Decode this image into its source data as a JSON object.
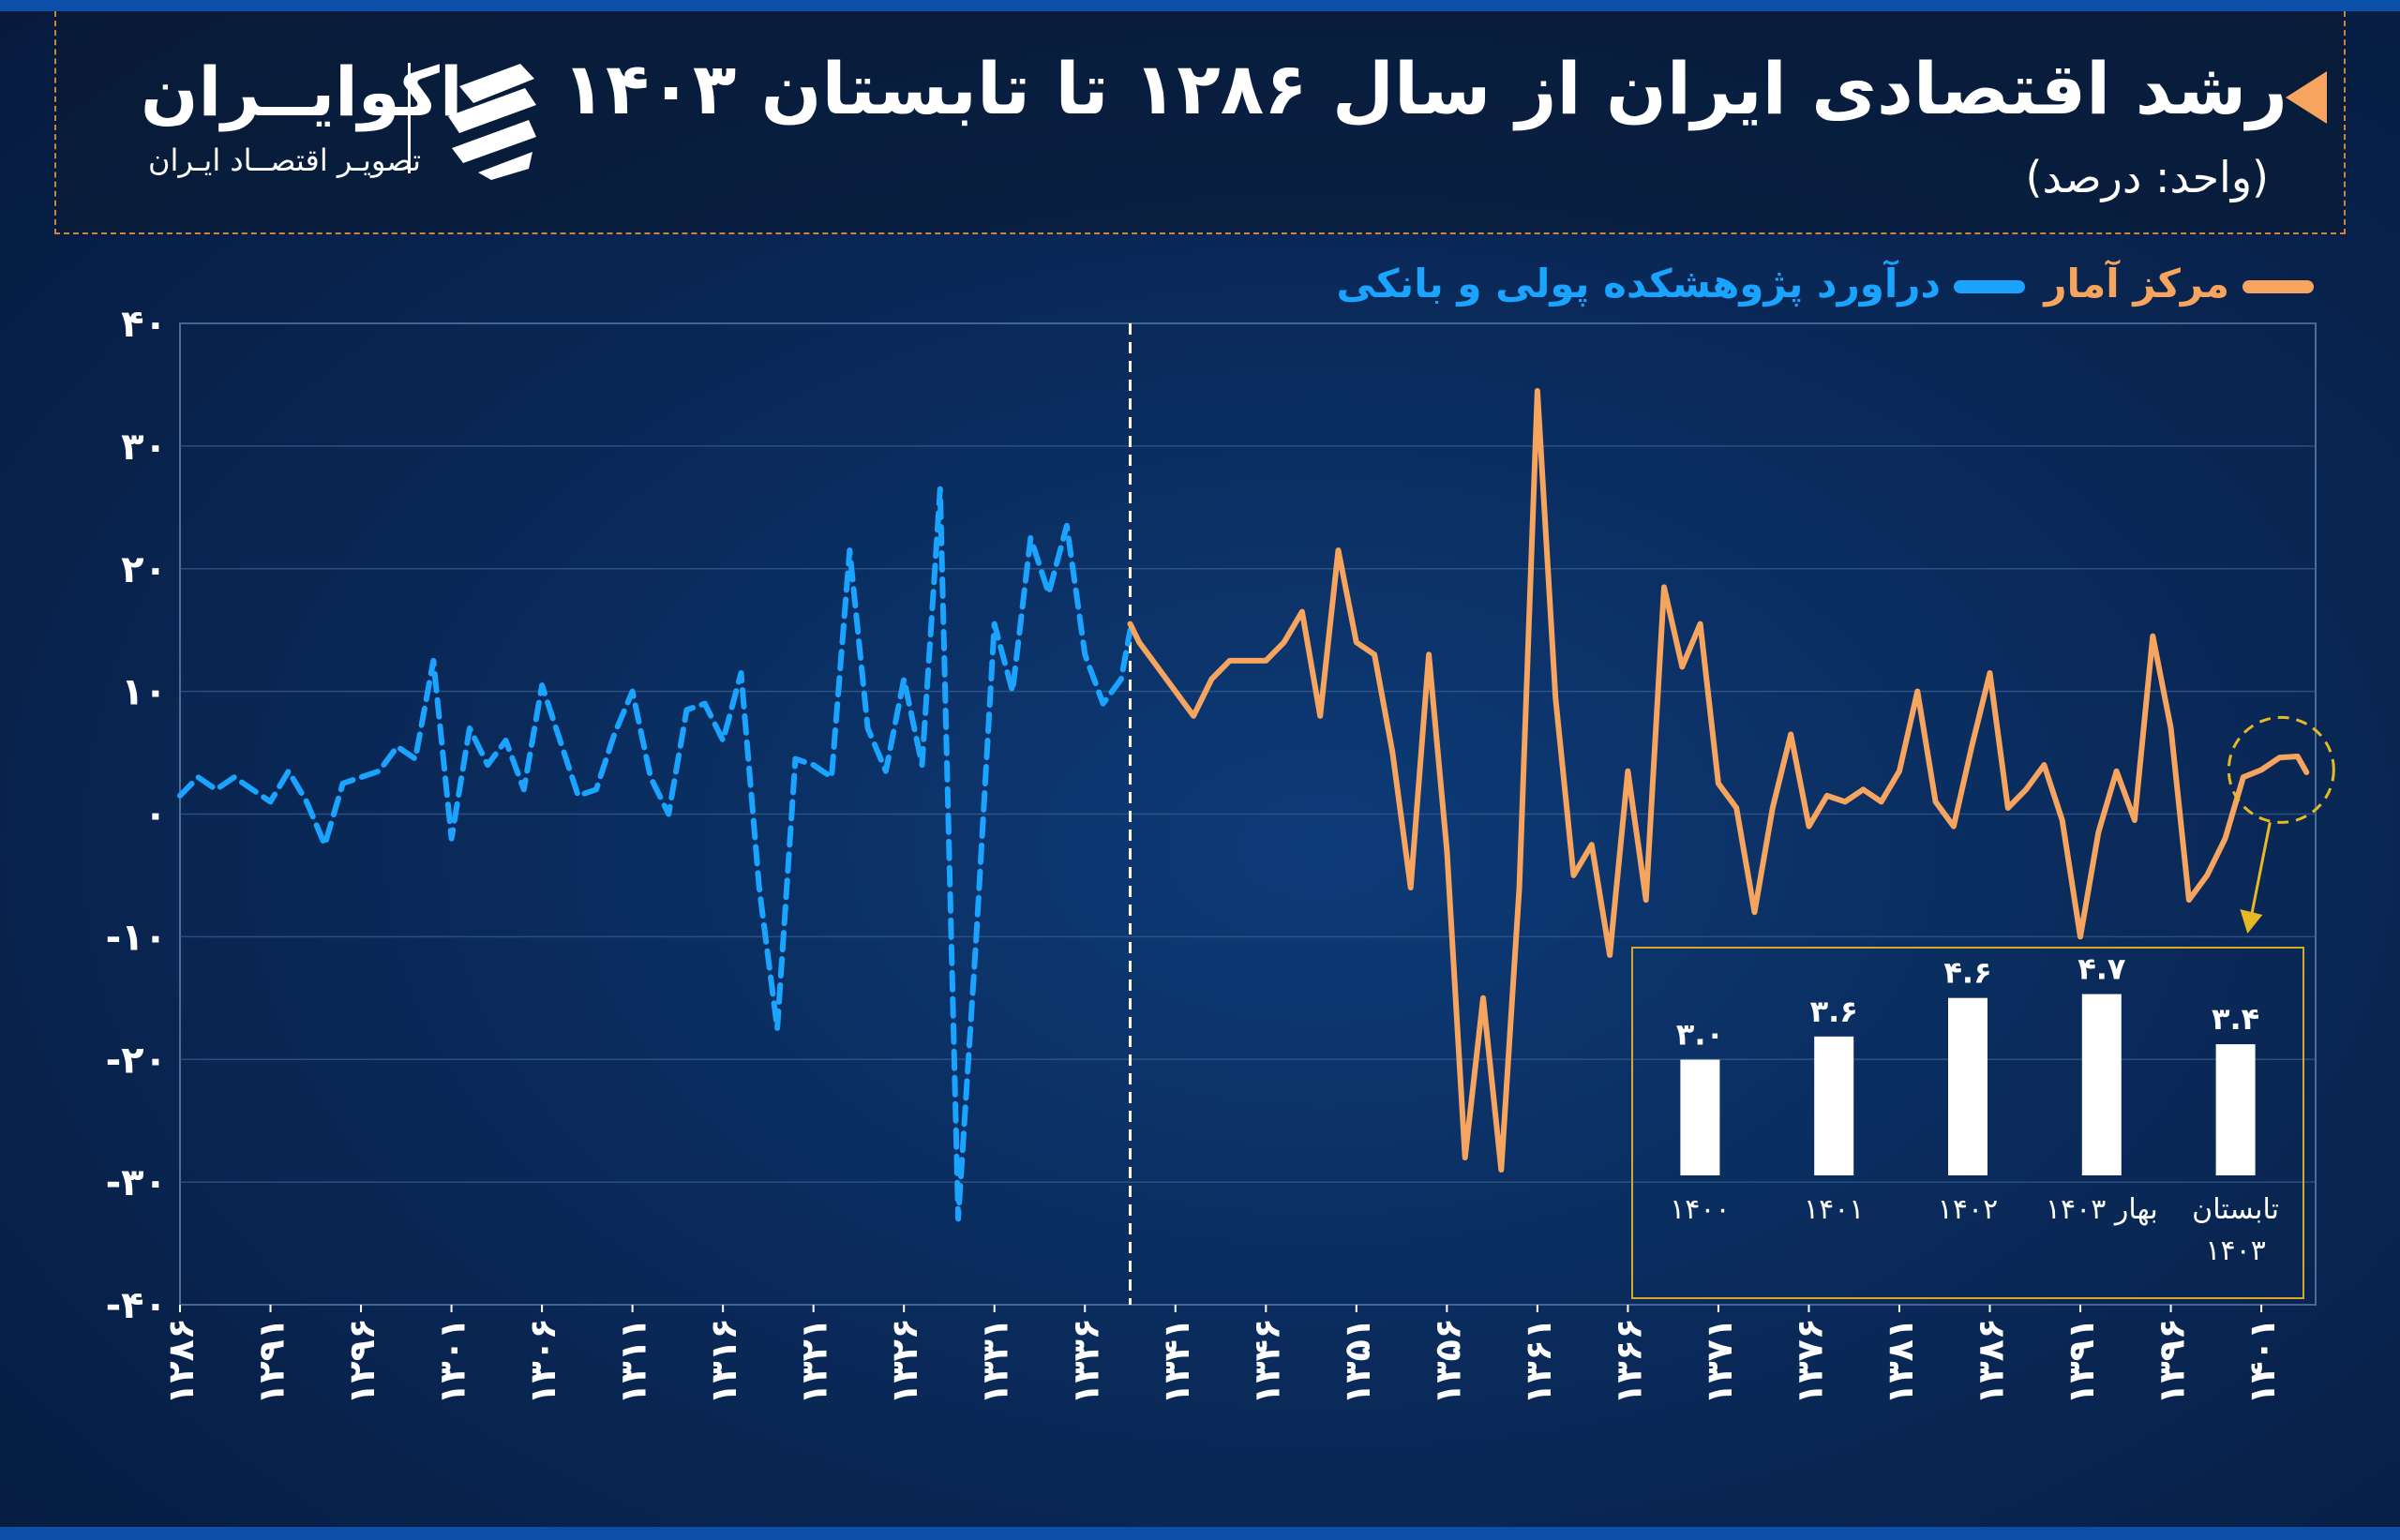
{
  "header": {
    "title": "رشد اقتصادی ایران از سال ۱۲۸۶ تا تابستان ۱۴۰۳",
    "subtitle": "(واحد: درصد)",
    "accent_color": "#f7a45f"
  },
  "logo": {
    "name": "اکوایــران",
    "tagline": "تصویـر اقتصــاد ایـران",
    "icon": "ecoiran-stripes-logo-icon"
  },
  "legend": {
    "official": "مرکز آمار",
    "estimate": "درآورد پژوهشکده پولی و بانکی"
  },
  "colors": {
    "official": "#f7a45f",
    "estimate": "#1aa3ff",
    "grid": "#3a5f8f",
    "inset_border": "#d9a82a",
    "highlight_circle": "#e7b923"
  },
  "chart_data": [
    {
      "type": "line",
      "title": "رشد اقتصادی ایران از سال ۱۲۸۶ تا تابستان ۱۴۰۳",
      "ylabel": "(واحد: درصد)",
      "xlabel": "",
      "ylim": [
        -40,
        40
      ],
      "yticks": [
        40,
        30,
        20,
        10,
        0,
        -10,
        -20,
        -30,
        -40
      ],
      "ytick_labels": [
        "۴۰",
        "۳۰",
        "۲۰",
        "۱۰",
        "۰",
        "-۱۰",
        "-۲۰",
        "-۳۰",
        "-۴۰"
      ],
      "xlim": [
        1286,
        1404
      ],
      "xticks": [
        1286,
        1291,
        1296,
        1301,
        1306,
        1311,
        1316,
        1321,
        1326,
        1331,
        1336,
        1341,
        1346,
        1351,
        1356,
        1361,
        1366,
        1371,
        1376,
        1381,
        1386,
        1391,
        1396,
        1401
      ],
      "xtick_labels": [
        "۱۲۸۶",
        "۱۲۹۱",
        "۱۲۹۶",
        "۱۳۰۱",
        "۱۳۰۶",
        "۱۳۱۱",
        "۱۳۱۶",
        "۱۳۲۱",
        "۱۳۲۶",
        "۱۳۳۱",
        "۱۳۳۶",
        "۱۳۴۱",
        "۱۳۴۶",
        "۱۳۵۱",
        "۱۳۵۶",
        "۱۳۶۱",
        "۱۳۶۶",
        "۱۳۷۱",
        "۱۳۷۶",
        "۱۳۸۱",
        "۱۳۸۶",
        "۱۳۹۱",
        "۱۳۹۶",
        "۱۴۰۱"
      ],
      "grid": true,
      "divider_x": 1338.5,
      "series": [
        {
          "name": "درآورد پژوهشکده پولی و بانکی",
          "style": "dashed",
          "x": [
            1286,
            1287,
            1288,
            1289,
            1290,
            1291,
            1292,
            1293,
            1294,
            1295,
            1296,
            1297,
            1298,
            1299,
            1300,
            1301,
            1302,
            1303,
            1304,
            1305,
            1306,
            1307,
            1308,
            1309,
            1310,
            1311,
            1312,
            1313,
            1314,
            1315,
            1316,
            1317,
            1318,
            1319,
            1320,
            1321,
            1322,
            1323,
            1324,
            1325,
            1326,
            1327,
            1328,
            1329,
            1330,
            1331,
            1332,
            1333,
            1334,
            1335,
            1336,
            1337,
            1338,
            1338.5
          ],
          "y": [
            1.5,
            3,
            2,
            3,
            2,
            1,
            3.5,
            1,
            -2.5,
            2.5,
            3,
            3.5,
            5.5,
            4.5,
            12.5,
            -2,
            7,
            4,
            6,
            2,
            10.5,
            6,
            1.5,
            2,
            6.5,
            10,
            3,
            0,
            8.5,
            9,
            6,
            11.5,
            -6,
            -17.5,
            4.5,
            4,
            3,
            21.5,
            7,
            3.5,
            11,
            4,
            26.5,
            -33,
            -10,
            15.5,
            10,
            22.5,
            18,
            23.5,
            13,
            9,
            11,
            15
          ]
        },
        {
          "name": "مرکز آمار",
          "style": "solid",
          "x": [
            1338.5,
            1339,
            1340,
            1341,
            1342,
            1343,
            1344,
            1345,
            1346,
            1347,
            1348,
            1349,
            1350,
            1351,
            1352,
            1353,
            1354,
            1355,
            1356,
            1357,
            1358,
            1359,
            1360,
            1361,
            1362,
            1363,
            1364,
            1365,
            1366,
            1367,
            1368,
            1369,
            1370,
            1371,
            1372,
            1373,
            1374,
            1375,
            1376,
            1377,
            1378,
            1379,
            1380,
            1381,
            1382,
            1383,
            1384,
            1385,
            1386,
            1387,
            1388,
            1389,
            1390,
            1391,
            1392,
            1393,
            1394,
            1395,
            1396,
            1397,
            1398,
            1399,
            1400,
            1401,
            1402,
            1403,
            1403.5
          ],
          "y": [
            15.5,
            14,
            12,
            10,
            8,
            11,
            12.5,
            12.5,
            12.5,
            14,
            16.5,
            8,
            21.5,
            14,
            13,
            5,
            -6,
            13,
            -3,
            -28,
            -15,
            -29,
            -6,
            34.5,
            9.5,
            -5,
            -2.5,
            -11.5,
            3.5,
            -7,
            18.5,
            12,
            15.5,
            2.5,
            0.5,
            -8,
            0.5,
            6.5,
            -1,
            1.5,
            1,
            2,
            1,
            3.5,
            10,
            1,
            -1,
            5.5,
            11.5,
            0.5,
            2,
            4,
            -0.5,
            -10,
            -1.5,
            3.5,
            -0.5,
            14.5,
            7,
            -7,
            -5,
            -2,
            3,
            3.6,
            4.6,
            4.7,
            3.4
          ]
        }
      ]
    },
    {
      "type": "bar",
      "categories": [
        "۱۴۰۰",
        "۱۴۰۱",
        "۱۴۰۲",
        "بهار ۱۴۰۳",
        "تابستان ۱۴۰۳"
      ],
      "values": [
        3.0,
        3.6,
        4.6,
        4.7,
        3.4
      ],
      "value_labels": [
        "۳.۰",
        "۳.۶",
        "۴.۶",
        "۴.۷",
        "۳.۴"
      ],
      "ylim": [
        0,
        5.2
      ],
      "bar_color": "#ffffff"
    }
  ]
}
